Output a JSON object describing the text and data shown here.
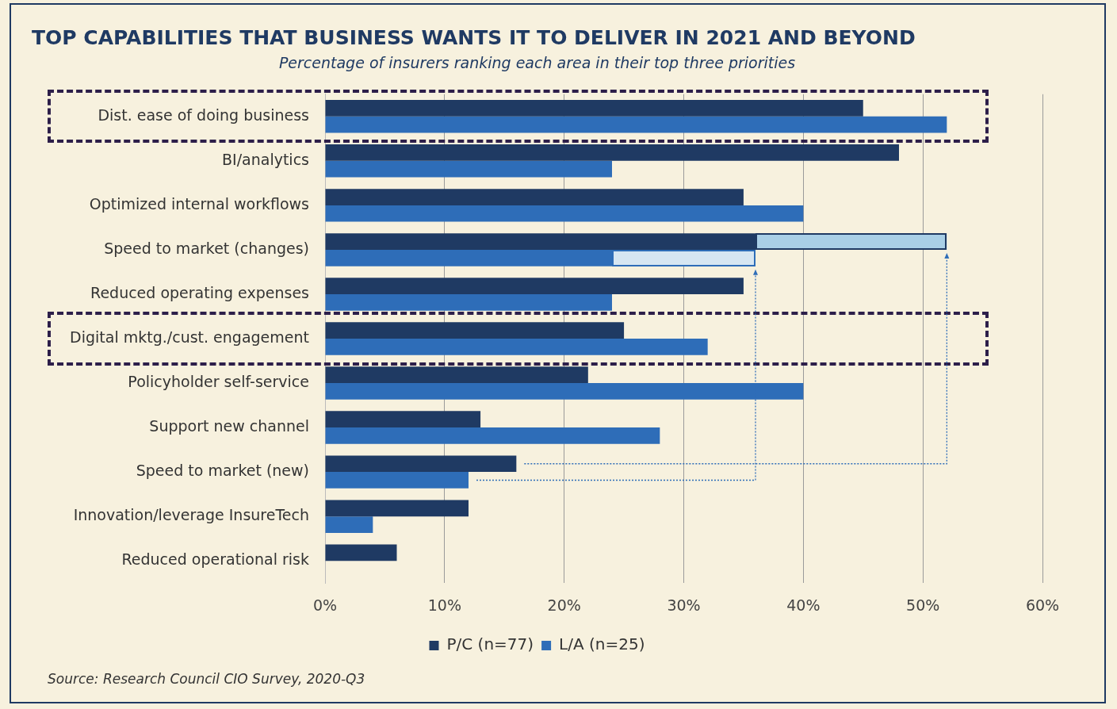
{
  "chart_data": {
    "type": "bar",
    "orientation": "horizontal",
    "title": "TOP CAPABILITIES THAT BUSINESS WANTS IT TO DELIVER IN 2021 AND BEYOND",
    "subtitle": "Percentage of insurers ranking each area in their top three priorities",
    "categories": [
      "Dist. ease of doing business",
      "BI/analytics",
      "Optimized internal workflows",
      "Speed to market (changes)",
      "Reduced operating expenses",
      "Digital mktg./cust. engagement",
      "Policyholder self-service",
      "Support new channel",
      "Speed to market (new)",
      "Innovation/leverage InsureTech",
      "Reduced operational risk"
    ],
    "series": [
      {
        "name": "P/C (n=77)",
        "color": "#1f3a63",
        "values": [
          45,
          48,
          35,
          36,
          35,
          25,
          22,
          13,
          16,
          12,
          6
        ]
      },
      {
        "name": "L/A (n=25)",
        "color": "#2e6db8",
        "values": [
          52,
          24,
          40,
          24,
          24,
          32,
          40,
          28,
          12,
          4,
          null
        ]
      },
      {
        "color": "#a9cfe6",
        "values": [
          null,
          null,
          null,
          16,
          null,
          null,
          null,
          null,
          null,
          null,
          null
        ],
        "base": [
          null,
          null,
          null,
          36,
          null,
          null,
          null,
          null,
          null,
          null,
          null
        ]
      },
      {
        "color": "#d6e6f2",
        "values": [
          null,
          null,
          null,
          12,
          null,
          null,
          null,
          null,
          null,
          null,
          null
        ],
        "base": [
          null,
          null,
          null,
          24,
          null,
          null,
          null,
          null,
          null,
          null,
          null
        ]
      }
    ],
    "xlim": [
      0,
      60
    ],
    "xticks": [
      {
        "value": 0,
        "label": "0%"
      },
      {
        "value": 10,
        "label": "10%"
      },
      {
        "value": 20,
        "label": "20%"
      },
      {
        "value": 30,
        "label": "30%"
      },
      {
        "value": 40,
        "label": "40%"
      },
      {
        "value": 50,
        "label": "50%"
      },
      {
        "value": 60,
        "label": "60%"
      }
    ],
    "grid": "x",
    "legend": "bottom",
    "annotations": [
      "Source: Research Council CIO Survey, 2020-Q3"
    ]
  }
}
